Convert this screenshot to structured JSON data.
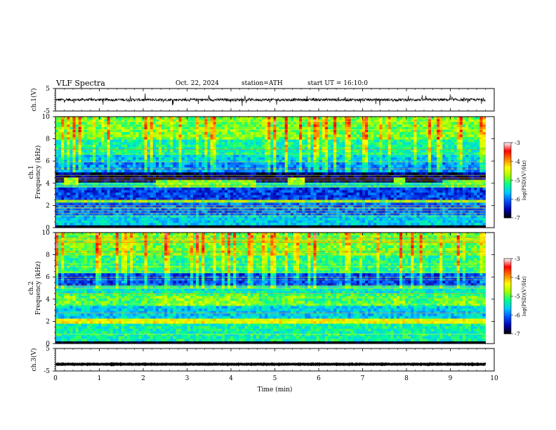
{
  "header": {
    "title": "VLF Spectra",
    "date": "Oct. 22, 2024",
    "station": "station=ATH",
    "start_ut": "start UT =  16:10:0"
  },
  "chart_data": [
    {
      "type": "line",
      "title": "",
      "ylabel": "ch.1(V)",
      "xlim": [
        0,
        10
      ],
      "ylim": [
        -5,
        5
      ],
      "yticks": [
        "5",
        "-5"
      ],
      "baseline": 0,
      "noise_amplitude": 1.2,
      "color": "#000000"
    },
    {
      "type": "heatmap",
      "ylabel_top": "ch.1",
      "ylabel": "Frequency (kHz)",
      "xlim": [
        0,
        10
      ],
      "ylim": [
        0,
        10
      ],
      "yticks": [
        "0",
        "2",
        "4",
        "6",
        "8",
        "10"
      ],
      "colorbar": {
        "label": "log(PSD)(V²/Hz)",
        "range": [
          -7,
          -3
        ],
        "ticks": [
          "-3",
          "-4",
          "-5",
          "-6",
          "-7"
        ],
        "colors": [
          "#000000",
          "#0000aa",
          "#0050ff",
          "#00c8ff",
          "#00ff90",
          "#a0ff00",
          "#ffff00",
          "#ff8000",
          "#ff0000",
          "#ffffff"
        ]
      },
      "bands": [
        {
          "f": [
            0,
            0.3
          ],
          "level": -7
        },
        {
          "f": [
            0.3,
            1.2
          ],
          "level": -5.6
        },
        {
          "f": [
            1.2,
            2.2
          ],
          "level": -6.0
        },
        {
          "f": [
            2.2,
            2.5
          ],
          "level": -4.9
        },
        {
          "f": [
            2.5,
            3.7
          ],
          "level": -6.2
        },
        {
          "f": [
            3.7,
            4.2
          ],
          "level": -5.4
        },
        {
          "f": [
            4.2,
            5.0
          ],
          "level": -6.7
        },
        {
          "f": [
            5.0,
            6.0
          ],
          "level": -5.9
        },
        {
          "f": [
            6.0,
            6.6
          ],
          "level": -5.6
        },
        {
          "f": [
            6.6,
            8.0
          ],
          "level": -5.3
        },
        {
          "f": [
            8.0,
            10.0
          ],
          "level": -4.9
        }
      ],
      "bursts": [
        {
          "t": [
            0.2,
            0.55
          ],
          "f": [
            3.8,
            4.6
          ],
          "level": -4.8
        },
        {
          "t": [
            2.3,
            4.6
          ],
          "f": [
            3.7,
            4.4
          ],
          "level": -4.9
        },
        {
          "t": [
            5.3,
            5.7
          ],
          "f": [
            3.8,
            4.6
          ],
          "level": -4.8
        },
        {
          "t": [
            7.7,
            8.0
          ],
          "f": [
            3.8,
            4.6
          ],
          "level": -4.8
        },
        {
          "t": [
            8.8,
            9.8
          ],
          "f": [
            3.7,
            4.4
          ],
          "level": -5.0
        }
      ]
    },
    {
      "type": "heatmap",
      "ylabel_top": "ch.2",
      "ylabel": "Frequency (kHz)",
      "xlim": [
        0,
        10
      ],
      "ylim": [
        0,
        10
      ],
      "yticks": [
        "0",
        "2",
        "4",
        "6",
        "8",
        "10"
      ],
      "colorbar": {
        "label": "log(PSD)(V²/Hz)",
        "range": [
          -7,
          -3
        ],
        "ticks": [
          "-3",
          "-4",
          "-5",
          "-6",
          "-7"
        ],
        "colors": [
          "#000000",
          "#0000aa",
          "#0050ff",
          "#00c8ff",
          "#00ff90",
          "#a0ff00",
          "#ffff00",
          "#ff8000",
          "#ff0000",
          "#ffffff"
        ]
      },
      "bands": [
        {
          "f": [
            0,
            0.3
          ],
          "level": -7
        },
        {
          "f": [
            0.3,
            1.8
          ],
          "level": -5.3
        },
        {
          "f": [
            1.8,
            2.3
          ],
          "level": -4.4
        },
        {
          "f": [
            2.3,
            3.4
          ],
          "level": -5.6
        },
        {
          "f": [
            3.4,
            4.6
          ],
          "level": -5.1
        },
        {
          "f": [
            4.6,
            5.2
          ],
          "level": -5.4
        },
        {
          "f": [
            5.2,
            6.4
          ],
          "level": -6.2
        },
        {
          "f": [
            6.4,
            8.0
          ],
          "level": -5.2
        },
        {
          "f": [
            8.0,
            10.0
          ],
          "level": -4.9
        }
      ],
      "bursts": [
        {
          "t": [
            0.2,
            0.55
          ],
          "f": [
            3.6,
            4.4
          ],
          "level": -4.8
        },
        {
          "t": [
            2.3,
            4.6
          ],
          "f": [
            3.5,
            4.4
          ],
          "level": -4.8
        },
        {
          "t": [
            5.3,
            5.7
          ],
          "f": [
            3.6,
            4.4
          ],
          "level": -4.8
        },
        {
          "t": [
            7.7,
            8.0
          ],
          "f": [
            3.6,
            4.4
          ],
          "level": -4.8
        },
        {
          "t": [
            8.8,
            9.8
          ],
          "f": [
            3.5,
            4.4
          ],
          "level": -4.9
        }
      ]
    },
    {
      "type": "line",
      "title": "",
      "ylabel": "ch.3(V)",
      "xlim": [
        0,
        10
      ],
      "ylim": [
        -5,
        5
      ],
      "yticks": [
        "5",
        "-5"
      ],
      "baseline": -2,
      "noise_amplitude": 0.2,
      "color": "#000000",
      "xlabel": "Time (min)",
      "xticks": [
        "0",
        "1",
        "2",
        "3",
        "4",
        "5",
        "6",
        "7",
        "8",
        "9",
        "10"
      ]
    }
  ]
}
